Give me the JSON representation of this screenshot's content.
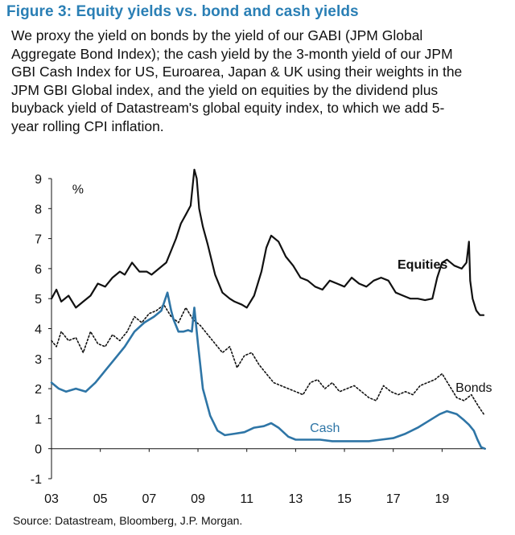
{
  "header": {
    "title": "Figure 3: Equity yields vs. bond and cash yields",
    "description_lines": [
      "We proxy the yield on bonds by the yield of our GABI (JPM Global",
      "Aggregate Bond Index); the cash yield by the 3-month yield of our JPM",
      "GBI Cash Index for US, Euroarea, Japan & UK using their weights in the",
      "JPM GBI Global index, and the yield on equities by the dividend plus",
      "buyback yield of Datastream's global equity index, to which we add 5-",
      "year rolling CPI inflation."
    ]
  },
  "footer": {
    "source": "Source:  Datastream, Bloomberg, J.P. Morgan."
  },
  "colors": {
    "equities": "#111111",
    "bonds": "#111111",
    "cash": "#2e75a6",
    "axis": "#111111"
  },
  "chart_data": {
    "type": "line",
    "title": "Figure 3: Equity yields vs. bond and cash yields",
    "ylabel": "%",
    "xlabel": "",
    "ylim": [
      -1,
      9
    ],
    "xlim": [
      2003,
      2020.8
    ],
    "yticks": [
      -1,
      0,
      1,
      2,
      3,
      4,
      5,
      6,
      7,
      8,
      9
    ],
    "xticks": [
      2003,
      2005,
      2007,
      2009,
      2011,
      2013,
      2015,
      2017,
      2019
    ],
    "xtick_labels": [
      "03",
      "05",
      "07",
      "09",
      "11",
      "13",
      "15",
      "17",
      "19"
    ],
    "series": [
      {
        "name": "Equities",
        "label": "Equities",
        "style": "solid",
        "x": [
          2003.0,
          2003.2,
          2003.4,
          2003.7,
          2004.0,
          2004.3,
          2004.6,
          2004.9,
          2005.2,
          2005.5,
          2005.8,
          2006.0,
          2006.3,
          2006.6,
          2006.9,
          2007.1,
          2007.4,
          2007.7,
          2007.9,
          2008.1,
          2008.3,
          2008.5,
          2008.7,
          2008.85,
          2008.95,
          2009.05,
          2009.2,
          2009.4,
          2009.7,
          2010.0,
          2010.3,
          2010.5,
          2010.8,
          2011.0,
          2011.3,
          2011.6,
          2011.8,
          2012.0,
          2012.3,
          2012.6,
          2012.9,
          2013.2,
          2013.5,
          2013.8,
          2014.1,
          2014.4,
          2014.7,
          2015.0,
          2015.3,
          2015.6,
          2015.9,
          2016.2,
          2016.5,
          2016.8,
          2017.1,
          2017.4,
          2017.7,
          2018.0,
          2018.3,
          2018.6,
          2018.8,
          2019.0,
          2019.2,
          2019.5,
          2019.8,
          2020.0,
          2020.1,
          2020.15,
          2020.25,
          2020.4,
          2020.55,
          2020.7
        ],
        "y": [
          5.0,
          5.3,
          4.9,
          5.1,
          4.7,
          4.9,
          5.1,
          5.5,
          5.4,
          5.7,
          5.9,
          5.8,
          6.2,
          5.9,
          5.9,
          5.8,
          6.0,
          6.2,
          6.6,
          7.0,
          7.5,
          7.8,
          8.1,
          9.3,
          9.0,
          8.0,
          7.4,
          6.8,
          5.8,
          5.2,
          5.0,
          4.9,
          4.8,
          4.7,
          5.1,
          5.9,
          6.7,
          7.1,
          6.9,
          6.4,
          6.1,
          5.7,
          5.6,
          5.4,
          5.3,
          5.6,
          5.5,
          5.4,
          5.7,
          5.5,
          5.4,
          5.6,
          5.7,
          5.6,
          5.2,
          5.1,
          5.0,
          5.0,
          4.95,
          5.0,
          5.7,
          6.2,
          6.3,
          6.1,
          6.0,
          6.2,
          6.9,
          5.6,
          5.0,
          4.6,
          4.45,
          4.45
        ]
      },
      {
        "name": "Bonds",
        "label": "Bonds",
        "style": "dotted",
        "x": [
          2003.0,
          2003.2,
          2003.4,
          2003.7,
          2004.0,
          2004.3,
          2004.6,
          2004.9,
          2005.2,
          2005.5,
          2005.8,
          2006.1,
          2006.4,
          2006.7,
          2007.0,
          2007.3,
          2007.6,
          2007.9,
          2008.2,
          2008.5,
          2008.8,
          2009.1,
          2009.4,
          2009.7,
          2010.0,
          2010.3,
          2010.6,
          2010.9,
          2011.2,
          2011.5,
          2011.8,
          2012.1,
          2012.4,
          2012.7,
          2013.0,
          2013.3,
          2013.6,
          2013.9,
          2014.2,
          2014.5,
          2014.8,
          2015.1,
          2015.4,
          2015.7,
          2016.0,
          2016.3,
          2016.6,
          2016.9,
          2017.2,
          2017.5,
          2017.8,
          2018.1,
          2018.4,
          2018.7,
          2019.0,
          2019.3,
          2019.6,
          2019.9,
          2020.2,
          2020.5,
          2020.75
        ],
        "y": [
          3.6,
          3.4,
          3.9,
          3.6,
          3.7,
          3.2,
          3.9,
          3.5,
          3.4,
          3.8,
          3.6,
          3.9,
          4.4,
          4.2,
          4.5,
          4.6,
          4.8,
          4.4,
          4.2,
          4.7,
          4.3,
          4.1,
          3.8,
          3.5,
          3.2,
          3.4,
          2.7,
          3.1,
          3.2,
          2.8,
          2.5,
          2.2,
          2.1,
          2.0,
          1.9,
          1.8,
          2.2,
          2.3,
          2.0,
          2.2,
          1.9,
          2.0,
          2.1,
          1.9,
          1.7,
          1.6,
          2.1,
          1.9,
          1.8,
          1.9,
          1.8,
          2.1,
          2.2,
          2.3,
          2.5,
          2.1,
          1.7,
          1.6,
          1.8,
          1.4,
          1.1
        ]
      },
      {
        "name": "Cash",
        "label": "Cash",
        "style": "solid",
        "x": [
          2003.0,
          2003.3,
          2003.6,
          2004.0,
          2004.4,
          2004.8,
          2005.2,
          2005.6,
          2006.0,
          2006.4,
          2006.8,
          2007.2,
          2007.5,
          2007.75,
          2007.9,
          2008.0,
          2008.2,
          2008.4,
          2008.6,
          2008.75,
          2008.85,
          2009.0,
          2009.2,
          2009.5,
          2009.8,
          2010.1,
          2010.5,
          2010.9,
          2011.3,
          2011.7,
          2012.0,
          2012.3,
          2012.7,
          2013.0,
          2013.5,
          2014.0,
          2014.5,
          2015.0,
          2015.5,
          2016.0,
          2016.5,
          2017.0,
          2017.5,
          2018.0,
          2018.5,
          2018.9,
          2019.2,
          2019.6,
          2019.9,
          2020.1,
          2020.3,
          2020.45,
          2020.6,
          2020.75
        ],
        "y": [
          2.2,
          2.0,
          1.9,
          2.0,
          1.9,
          2.2,
          2.6,
          3.0,
          3.4,
          3.9,
          4.2,
          4.4,
          4.6,
          5.2,
          4.6,
          4.3,
          3.9,
          3.9,
          3.95,
          3.9,
          4.7,
          3.5,
          2.0,
          1.1,
          0.6,
          0.45,
          0.5,
          0.55,
          0.7,
          0.75,
          0.85,
          0.7,
          0.4,
          0.3,
          0.3,
          0.3,
          0.25,
          0.25,
          0.25,
          0.25,
          0.3,
          0.35,
          0.5,
          0.7,
          0.95,
          1.15,
          1.25,
          1.15,
          0.95,
          0.8,
          0.6,
          0.3,
          0.05,
          0.0
        ]
      }
    ],
    "annotations": [
      {
        "text": "Equities",
        "series": "Equities",
        "at": [
          2018.2,
          6.0
        ]
      },
      {
        "text": "Bonds",
        "series": "Bonds",
        "at": [
          2020.3,
          1.9
        ]
      },
      {
        "text": "Cash",
        "series": "Cash",
        "at": [
          2014.2,
          0.55
        ]
      },
      {
        "text": "%",
        "at": [
          2003.85,
          8.5
        ]
      }
    ]
  }
}
